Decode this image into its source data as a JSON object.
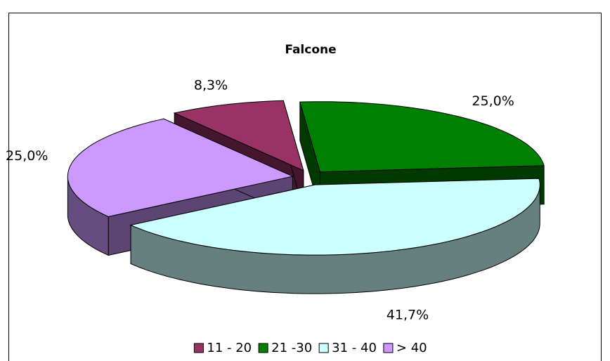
{
  "chart_data": {
    "type": "pie",
    "title": "Falcone",
    "categories": [
      "11 - 20",
      "21 -30",
      "31 - 40",
      "> 40"
    ],
    "values": [
      8.3,
      25.0,
      41.7,
      25.0
    ],
    "value_labels": [
      "8,3%",
      "25,0%",
      "41,7%",
      "25,0%"
    ],
    "colors": [
      "#993366",
      "#008000",
      "#ccffff",
      "#cc99ff"
    ],
    "legend": "bottom"
  }
}
